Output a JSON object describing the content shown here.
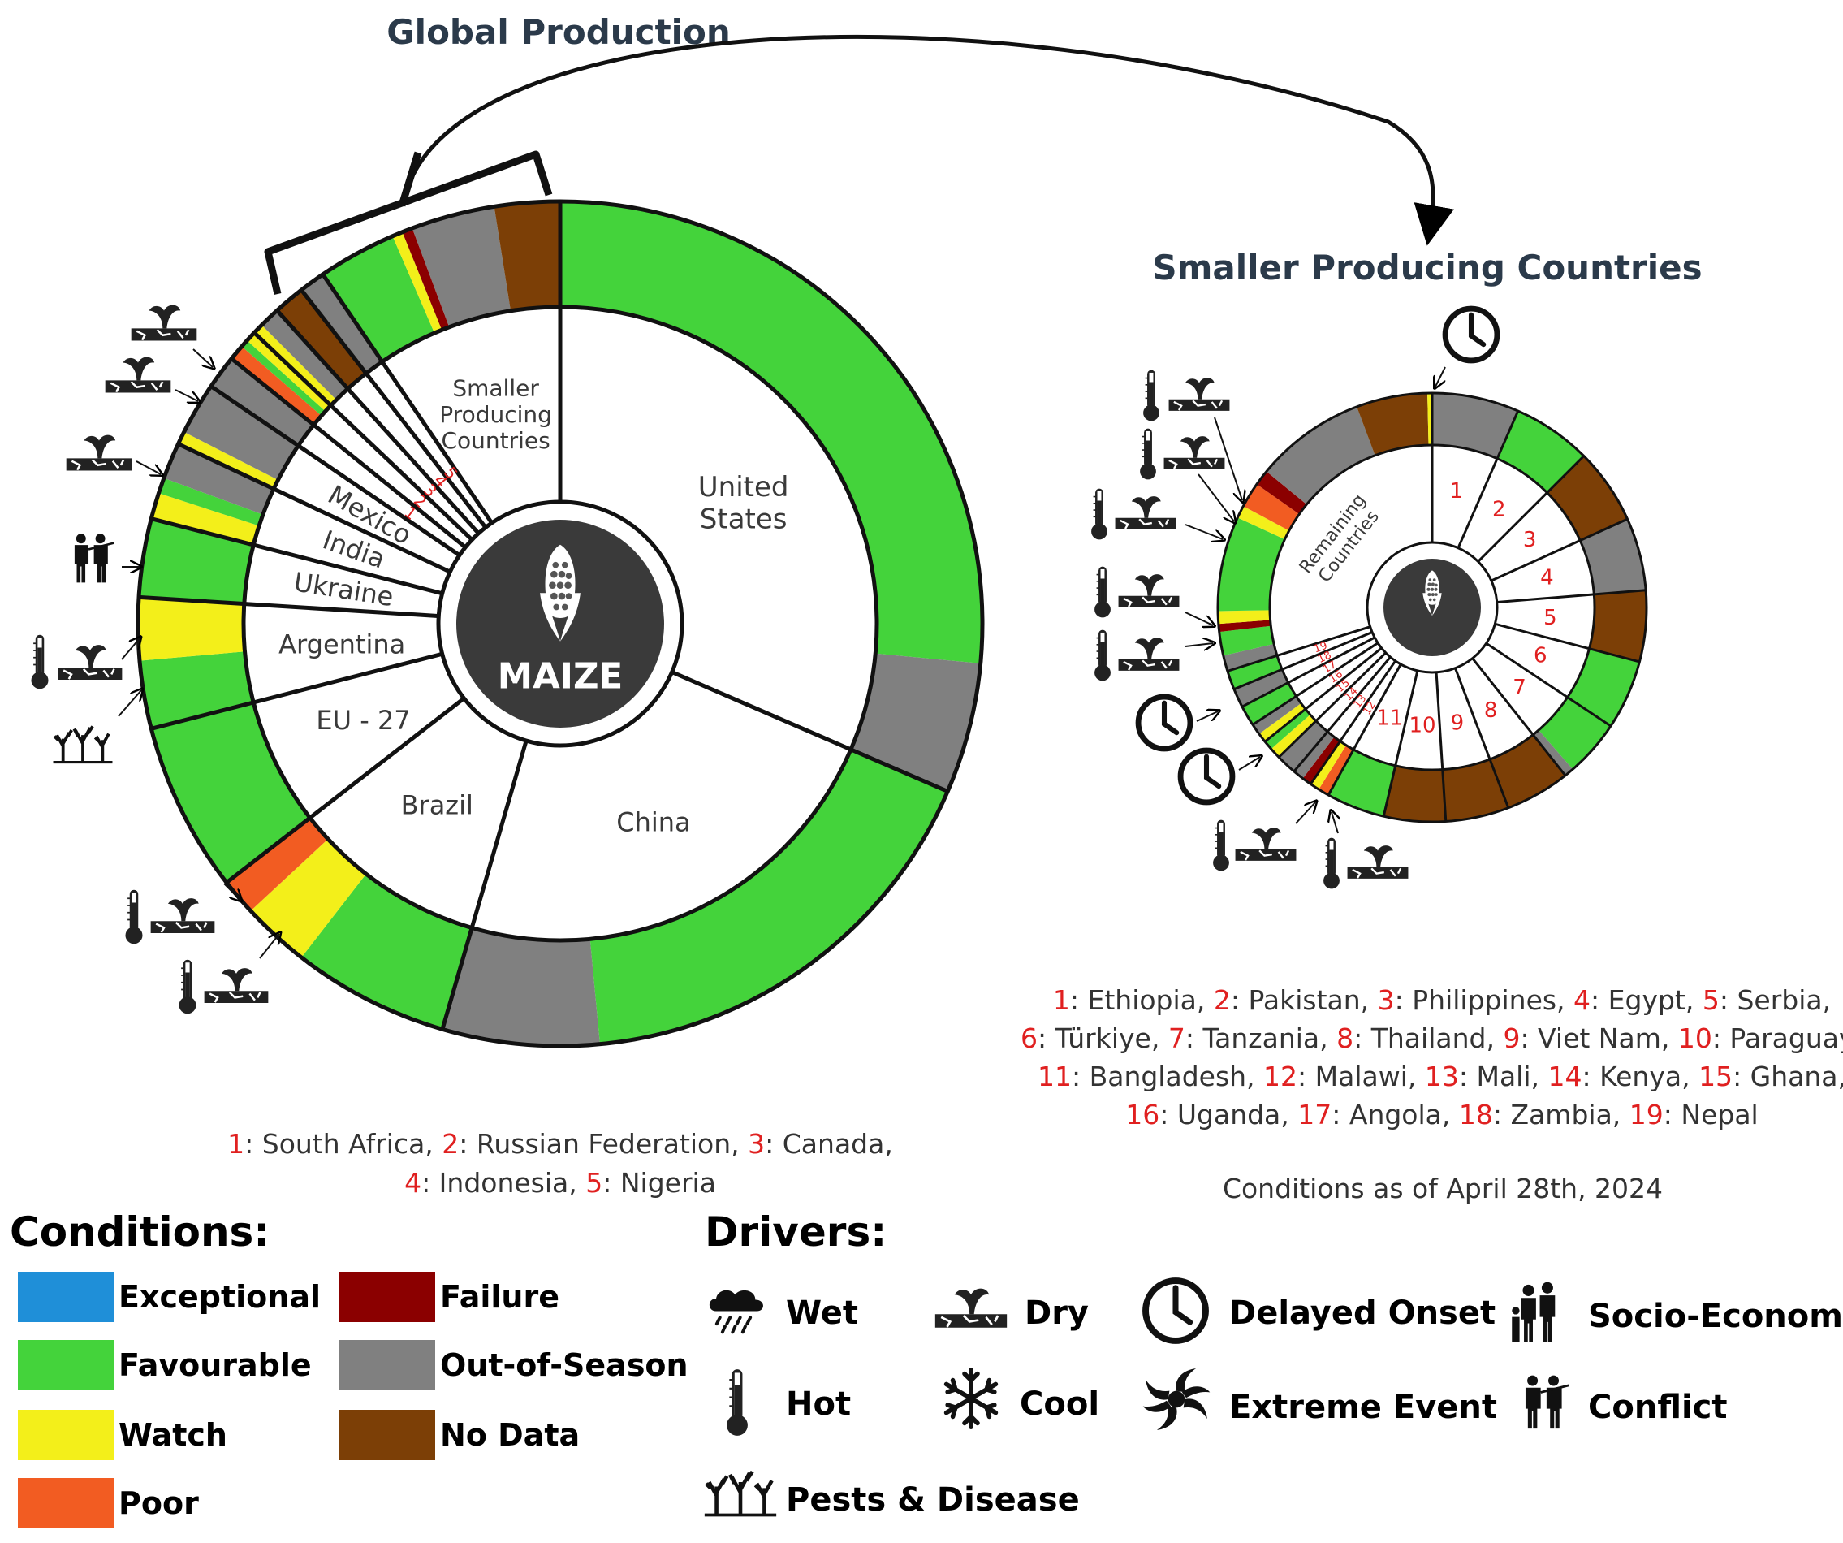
{
  "colors": {
    "Exceptional": "#1f8fd8",
    "Favourable": "#44d33b",
    "Watch": "#f3ef1a",
    "Poor": "#f25c22",
    "Failure": "#8b0000",
    "Out-of-Season": "#808080",
    "No Data": "#7c3f06"
  },
  "titles": {
    "global": "Global Production",
    "smaller": "Smaller Producing Countries"
  },
  "center_label": "MAIZE",
  "chart_data": [
    {
      "type": "donut",
      "title": "Global Production",
      "inner_ring": [
        {
          "label": "United States",
          "value": 31.5
        },
        {
          "label": "China",
          "value": 23.0
        },
        {
          "label": "Brazil",
          "value": 10.0
        },
        {
          "label": "EU - 27",
          "value": 6.5
        },
        {
          "label": "Argentina",
          "value": 5.0
        },
        {
          "label": "Ukraine",
          "value": 3.0
        },
        {
          "label": "India",
          "value": 3.0
        },
        {
          "label": "Mexico",
          "value": 2.5
        },
        {
          "label": "1",
          "value": 1.3
        },
        {
          "label": "2",
          "value": 1.3
        },
        {
          "label": "3",
          "value": 1.2
        },
        {
          "label": "4",
          "value": 1.2
        },
        {
          "label": "5",
          "value": 1.0
        },
        {
          "label": "Smaller Producing Countries",
          "value": 9.5
        }
      ],
      "outer_ring": [
        {
          "country": "United States",
          "condition": "Favourable",
          "value": 26.5
        },
        {
          "country": "United States",
          "condition": "Out-of-Season",
          "value": 5.0
        },
        {
          "country": "China",
          "condition": "Favourable",
          "value": 17.0
        },
        {
          "country": "China",
          "condition": "Out-of-Season",
          "value": 6.0
        },
        {
          "country": "Brazil",
          "condition": "Favourable",
          "value": 6.0
        },
        {
          "country": "Brazil",
          "condition": "Watch",
          "value": 2.6
        },
        {
          "country": "Brazil",
          "condition": "Poor",
          "value": 1.4
        },
        {
          "country": "EU - 27",
          "condition": "Favourable",
          "value": 6.5
        },
        {
          "country": "Argentina",
          "condition": "Favourable",
          "value": 2.6
        },
        {
          "country": "Argentina",
          "condition": "Watch",
          "value": 2.4
        },
        {
          "country": "Ukraine",
          "condition": "Favourable",
          "value": 3.0
        },
        {
          "country": "India",
          "condition": "Watch",
          "value": 1.0
        },
        {
          "country": "India",
          "condition": "Favourable",
          "value": 0.6
        },
        {
          "country": "India",
          "condition": "Out-of-Season",
          "value": 1.4
        },
        {
          "country": "Mexico",
          "condition": "Watch",
          "value": 0.5
        },
        {
          "country": "Mexico",
          "condition": "Out-of-Season",
          "value": 2.0
        },
        {
          "country": "South Africa",
          "condition": "Out-of-Season",
          "value": 1.3
        },
        {
          "country": "Russian Federation",
          "condition": "Poor",
          "value": 0.6
        },
        {
          "country": "Russian Federation",
          "condition": "Favourable",
          "value": 0.3
        },
        {
          "country": "Russian Federation",
          "condition": "Watch",
          "value": 0.4
        },
        {
          "country": "Canada",
          "condition": "Watch",
          "value": 0.4
        },
        {
          "country": "Canada",
          "condition": "Out-of-Season",
          "value": 0.8
        },
        {
          "country": "Indonesia",
          "condition": "No Data",
          "value": 1.2
        },
        {
          "country": "Nigeria",
          "condition": "Out-of-Season",
          "value": 1.0
        },
        {
          "country": "Smaller Producing Countries",
          "condition": "Favourable",
          "value": 3.0
        },
        {
          "country": "Smaller Producing Countries",
          "condition": "Watch",
          "value": 0.4
        },
        {
          "country": "Smaller Producing Countries",
          "condition": "Failure",
          "value": 0.4
        },
        {
          "country": "Smaller Producing Countries",
          "condition": "Out-of-Season",
          "value": 3.2
        },
        {
          "country": "Smaller Producing Countries",
          "condition": "No Data",
          "value": 2.5
        }
      ],
      "footnote": [
        {
          "num": "1",
          "name": "South Africa"
        },
        {
          "num": "2",
          "name": "Russian Federation"
        },
        {
          "num": "3",
          "name": "Canada"
        },
        {
          "num": "4",
          "name": "Indonesia"
        },
        {
          "num": "5",
          "name": "Nigeria"
        }
      ]
    },
    {
      "type": "donut",
      "title": "Smaller Producing Countries",
      "inner_ring": [
        {
          "label": "1",
          "value": 5.5
        },
        {
          "label": "2",
          "value": 5.0
        },
        {
          "label": "3",
          "value": 4.8
        },
        {
          "label": "4",
          "value": 4.6
        },
        {
          "label": "5",
          "value": 4.5
        },
        {
          "label": "6",
          "value": 4.4
        },
        {
          "label": "7",
          "value": 4.2
        },
        {
          "label": "8",
          "value": 4.1
        },
        {
          "label": "9",
          "value": 4.0
        },
        {
          "label": "10",
          "value": 3.9
        },
        {
          "label": "11",
          "value": 3.7
        },
        {
          "label": "12",
          "value": 1.3
        },
        {
          "label": "13",
          "value": 1.3
        },
        {
          "label": "14",
          "value": 1.3
        },
        {
          "label": "15",
          "value": 1.3
        },
        {
          "label": "16",
          "value": 1.3
        },
        {
          "label": "17",
          "value": 1.3
        },
        {
          "label": "18",
          "value": 1.2
        },
        {
          "label": "19",
          "value": 1.2
        },
        {
          "label": "Remaining Countries",
          "value": 25.0
        }
      ],
      "outer_ring": [
        {
          "country": "Ethiopia",
          "condition": "Out-of-Season",
          "value": 5.5
        },
        {
          "country": "Pakistan",
          "condition": "Favourable",
          "value": 5.0
        },
        {
          "country": "Philippines",
          "condition": "No Data",
          "value": 4.8
        },
        {
          "country": "Egypt",
          "condition": "Out-of-Season",
          "value": 4.6
        },
        {
          "country": "Serbia",
          "condition": "No Data",
          "value": 4.5
        },
        {
          "country": "Türkiye",
          "condition": "Favourable",
          "value": 4.4
        },
        {
          "country": "Tanzania",
          "condition": "Favourable",
          "value": 3.6
        },
        {
          "country": "Tanzania",
          "condition": "Out-of-Season",
          "value": 0.6
        },
        {
          "country": "Thailand",
          "condition": "No Data",
          "value": 4.1
        },
        {
          "country": "Viet Nam",
          "condition": "No Data",
          "value": 4.0
        },
        {
          "country": "Paraguay",
          "condition": "No Data",
          "value": 3.9
        },
        {
          "country": "Bangladesh",
          "condition": "Favourable",
          "value": 3.7
        },
        {
          "country": "Malawi",
          "condition": "Poor",
          "value": 0.7
        },
        {
          "country": "Malawi",
          "condition": "Watch",
          "value": 0.6
        },
        {
          "country": "Mali",
          "condition": "Failure",
          "value": 0.6
        },
        {
          "country": "Mali",
          "condition": "Out-of-Season",
          "value": 0.7
        },
        {
          "country": "Kenya",
          "condition": "Out-of-Season",
          "value": 1.3
        },
        {
          "country": "Ghana",
          "condition": "Watch",
          "value": 0.7
        },
        {
          "country": "Ghana",
          "condition": "Favourable",
          "value": 0.6
        },
        {
          "country": "Uganda",
          "condition": "Watch",
          "value": 0.6
        },
        {
          "country": "Uganda",
          "condition": "Out-of-Season",
          "value": 0.7
        },
        {
          "country": "Angola",
          "condition": "Favourable",
          "value": 1.3
        },
        {
          "country": "Zambia",
          "condition": "Out-of-Season",
          "value": 1.2
        },
        {
          "country": "Nepal",
          "condition": "Favourable",
          "value": 1.2
        },
        {
          "country": "Remaining Countries",
          "condition": "Out-of-Season",
          "value": 1.0
        },
        {
          "country": "Remaining Countries",
          "condition": "Favourable",
          "value": 1.5
        },
        {
          "country": "Remaining Countries",
          "condition": "Failure",
          "value": 0.5
        },
        {
          "country": "Remaining Countries",
          "condition": "Watch",
          "value": 0.8
        },
        {
          "country": "Remaining Countries",
          "condition": "Favourable",
          "value": 6.0
        },
        {
          "country": "Remaining Countries",
          "condition": "Watch",
          "value": 0.8
        },
        {
          "country": "Remaining Countries",
          "condition": "Poor",
          "value": 1.6
        },
        {
          "country": "Remaining Countries",
          "condition": "Failure",
          "value": 1.0
        },
        {
          "country": "Remaining Countries",
          "condition": "Out-of-Season",
          "value": 7.0
        },
        {
          "country": "Remaining Countries",
          "condition": "No Data",
          "value": 4.5
        },
        {
          "country": "Remaining Countries",
          "condition": "Watch",
          "value": 0.3
        }
      ],
      "footnote": [
        {
          "num": "1",
          "name": "Ethiopia"
        },
        {
          "num": "2",
          "name": "Pakistan"
        },
        {
          "num": "3",
          "name": "Philippines"
        },
        {
          "num": "4",
          "name": "Egypt"
        },
        {
          "num": "5",
          "name": "Serbia"
        },
        {
          "num": "6",
          "name": "Türkiye"
        },
        {
          "num": "7",
          "name": "Tanzania"
        },
        {
          "num": "8",
          "name": "Thailand"
        },
        {
          "num": "9",
          "name": "Viet Nam"
        },
        {
          "num": "10",
          "name": "Paraguay"
        },
        {
          "num": "11",
          "name": "Bangladesh"
        },
        {
          "num": "12",
          "name": "Malawi"
        },
        {
          "num": "13",
          "name": "Mali"
        },
        {
          "num": "14",
          "name": "Kenya"
        },
        {
          "num": "15",
          "name": "Ghana"
        },
        {
          "num": "16",
          "name": "Uganda"
        },
        {
          "num": "17",
          "name": "Angola"
        },
        {
          "num": "18",
          "name": "Zambia"
        },
        {
          "num": "19",
          "name": "Nepal"
        }
      ]
    }
  ],
  "conditions_date": "Conditions as of April 28th, 2024",
  "legend": {
    "conditions_title": "Conditions:",
    "conditions": [
      "Exceptional",
      "Favourable",
      "Watch",
      "Poor",
      "Failure",
      "Out-of-Season",
      "No Data"
    ],
    "drivers_title": "Drivers:",
    "drivers": [
      {
        "label": "Wet",
        "icon": "wet-icon"
      },
      {
        "label": "Dry",
        "icon": "dry-icon"
      },
      {
        "label": "Delayed Onset",
        "icon": "clock-icon"
      },
      {
        "label": "Socio-Economic",
        "icon": "people-icon"
      },
      {
        "label": "Hot",
        "icon": "thermometer-icon"
      },
      {
        "label": "Cool",
        "icon": "snowflake-icon"
      },
      {
        "label": "Extreme Event",
        "icon": "cyclone-icon"
      },
      {
        "label": "Conflict",
        "icon": "soldiers-icon"
      },
      {
        "label": "Pests & Disease",
        "icon": "pests-icon"
      }
    ]
  }
}
